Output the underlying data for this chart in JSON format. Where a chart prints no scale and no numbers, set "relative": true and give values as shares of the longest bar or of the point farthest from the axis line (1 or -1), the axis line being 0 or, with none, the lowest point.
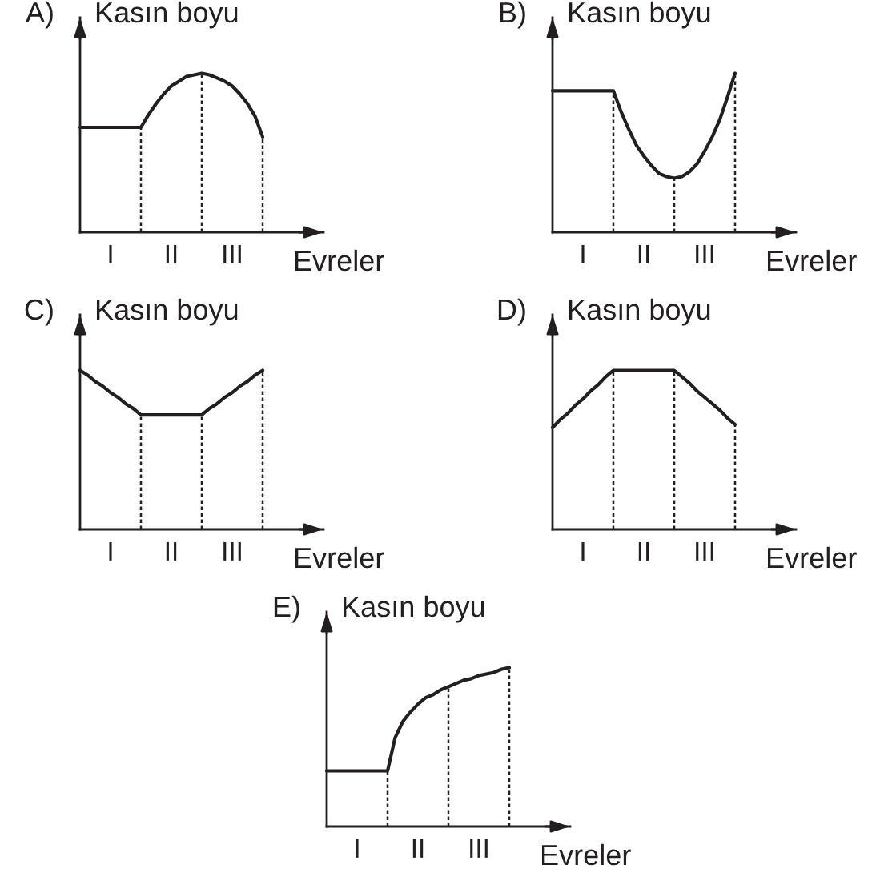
{
  "chart_data": [
    {
      "type": "line",
      "title": "A)",
      "ylabel": "Kasın boyu",
      "xlabel": "Evreler",
      "relative": true,
      "tick_labels": "x",
      "grid": false,
      "color": "#231f20",
      "categories": [
        null,
        null,
        null,
        null,
        "I",
        null,
        null,
        null,
        null,
        null,
        null,
        null,
        "II",
        null,
        null,
        null,
        null,
        null,
        null,
        null,
        "III",
        null,
        null,
        null,
        null
      ],
      "values": [
        0.66,
        0.66,
        0.66,
        0.66,
        0.66,
        0.66,
        0.66,
        0.66,
        0.66,
        0.74,
        0.81,
        0.87,
        0.92,
        0.95,
        0.98,
        0.99,
        1,
        0.99,
        0.97,
        0.95,
        0.92,
        0.87,
        0.81,
        0.73,
        0.6
      ]
    },
    {
      "type": "line",
      "title": "B)",
      "ylabel": "Kasın boyu",
      "xlabel": "Evreler",
      "relative": true,
      "tick_labels": "x",
      "grid": false,
      "color": "#231f20",
      "categories": [
        null,
        null,
        null,
        null,
        "I",
        null,
        null,
        null,
        null,
        null,
        null,
        null,
        "II",
        null,
        null,
        null,
        null,
        null,
        null,
        null,
        "III",
        null,
        null,
        null,
        null
      ],
      "values": [
        0.89,
        0.89,
        0.89,
        0.89,
        0.89,
        0.89,
        0.89,
        0.89,
        0.89,
        0.76,
        0.65,
        0.55,
        0.48,
        0.42,
        0.37,
        0.35,
        0.34,
        0.35,
        0.38,
        0.43,
        0.51,
        0.6,
        0.71,
        0.85,
        1
      ]
    },
    {
      "type": "line",
      "title": "C)",
      "ylabel": "Kasın boyu",
      "xlabel": "Evreler",
      "relative": true,
      "tick_labels": "x",
      "grid": false,
      "color": "#231f20",
      "categories": [
        null,
        null,
        null,
        null,
        "I",
        null,
        null,
        null,
        null,
        null,
        null,
        null,
        "II",
        null,
        null,
        null,
        null,
        null,
        null,
        null,
        "III",
        null,
        null,
        null,
        null
      ],
      "values": [
        1,
        0.97,
        0.93,
        0.9,
        0.86,
        0.83,
        0.79,
        0.76,
        0.72,
        0.72,
        0.72,
        0.72,
        0.72,
        0.72,
        0.72,
        0.72,
        0.72,
        0.76,
        0.79,
        0.83,
        0.86,
        0.9,
        0.93,
        0.97,
        1
      ]
    },
    {
      "type": "line",
      "title": "D)",
      "ylabel": "Kasın boyu",
      "xlabel": "Evreler",
      "relative": true,
      "tick_labels": "x",
      "grid": false,
      "color": "#231f20",
      "categories": [
        null,
        null,
        null,
        null,
        "I",
        null,
        null,
        null,
        null,
        null,
        null,
        null,
        "II",
        null,
        null,
        null,
        null,
        null,
        null,
        null,
        "III",
        null,
        null,
        null,
        null
      ],
      "values": [
        0.64,
        0.69,
        0.73,
        0.78,
        0.82,
        0.87,
        0.91,
        0.96,
        1,
        1,
        1,
        1,
        1,
        1,
        1,
        1,
        1,
        0.96,
        0.92,
        0.87,
        0.83,
        0.79,
        0.75,
        0.7,
        0.66
      ]
    },
    {
      "type": "line",
      "title": "E)",
      "ylabel": "Kasın boyu",
      "xlabel": "Evreler",
      "relative": true,
      "tick_labels": "x",
      "grid": false,
      "color": "#231f20",
      "categories": [
        null,
        null,
        null,
        null,
        "I",
        null,
        null,
        null,
        null,
        null,
        null,
        null,
        "II",
        null,
        null,
        null,
        null,
        null,
        null,
        null,
        "III",
        null,
        null,
        null,
        null
      ],
      "values": [
        0.35,
        0.35,
        0.35,
        0.35,
        0.35,
        0.35,
        0.35,
        0.35,
        0.35,
        0.56,
        0.66,
        0.72,
        0.77,
        0.81,
        0.83,
        0.86,
        0.88,
        0.9,
        0.92,
        0.93,
        0.95,
        0.96,
        0.97,
        0.99,
        1
      ]
    }
  ]
}
